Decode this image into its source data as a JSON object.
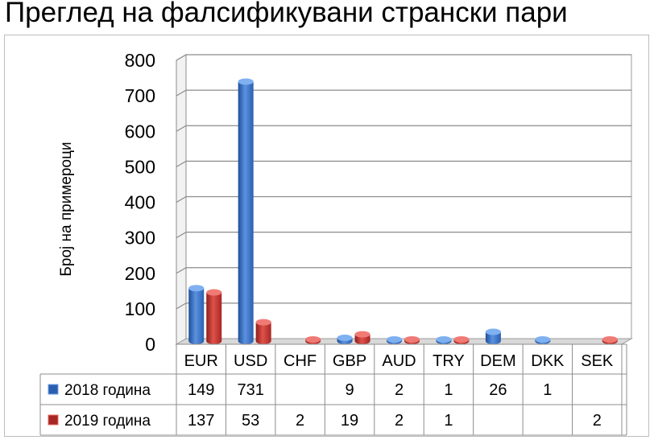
{
  "title": "Преглед на фалсификувани странски пари",
  "chart_data": {
    "type": "bar",
    "title": "Преглед на фалсификувани странски пари",
    "ylabel": "Број на примероци",
    "xlabel": "",
    "ylim": [
      0,
      800
    ],
    "yticks": [
      0,
      100,
      200,
      300,
      400,
      500,
      600,
      700,
      800
    ],
    "grid": true,
    "legend": "data-table-left",
    "categories": [
      "EUR",
      "USD",
      "CHF",
      "GBP",
      "AUD",
      "TRY",
      "DEM",
      "DKK",
      "SEK"
    ],
    "series": [
      {
        "name": "2018 година",
        "color": "#3a72c4",
        "values": [
          149,
          731,
          null,
          9,
          2,
          1,
          26,
          1,
          null
        ]
      },
      {
        "name": "2019 година",
        "color": "#c9302c",
        "values": [
          137,
          53,
          2,
          19,
          2,
          1,
          null,
          null,
          2
        ]
      }
    ]
  }
}
